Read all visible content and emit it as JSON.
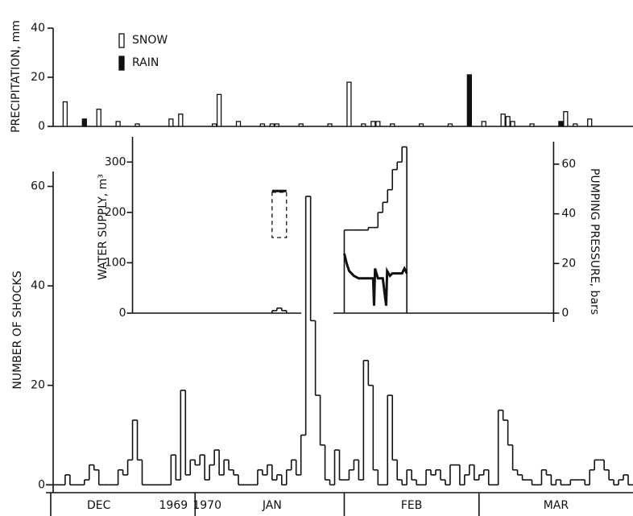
{
  "chart_data": [
    {
      "type": "bar",
      "y_label": "PRECIPITATION, mm",
      "xlim": [
        0,
        122
      ],
      "ylim": [
        0,
        40
      ],
      "yticks": [
        0,
        20,
        40
      ],
      "series": [
        {
          "name": "SNOW",
          "style": "hollow",
          "color": "#111111",
          "x": [
            4,
            11,
            15,
            19,
            26,
            28,
            35,
            36,
            40,
            45,
            47,
            48,
            53,
            59,
            63,
            66,
            68,
            69,
            72,
            78,
            84,
            91,
            95,
            96,
            97,
            101,
            108,
            110,
            113
          ],
          "values": [
            10,
            7,
            2,
            1,
            3,
            5,
            1,
            13,
            2,
            1,
            1,
            1,
            1,
            1,
            18,
            1,
            2,
            2,
            1,
            1,
            1,
            2,
            5,
            4,
            2,
            1,
            6,
            1,
            3
          ]
        },
        {
          "name": "RAIN",
          "style": "filled",
          "color": "#111111",
          "x": [
            8,
            88,
            107
          ],
          "values": [
            3,
            21,
            2
          ]
        }
      ]
    },
    {
      "type": "step",
      "y_label": "NUMBER OF SHOCKS",
      "xlim": [
        0,
        122
      ],
      "ylim": [
        -4,
        63
      ],
      "yticks": [
        0,
        20,
        40,
        60
      ],
      "color": "#111111",
      "x": [
        0,
        1,
        2,
        3,
        4,
        5,
        6,
        7,
        8,
        9,
        10,
        11,
        12,
        13,
        14,
        15,
        16,
        17,
        18,
        19,
        20,
        21,
        22,
        23,
        24,
        25,
        26,
        27,
        28,
        29,
        30,
        31,
        32,
        33,
        34,
        35,
        36,
        37,
        38,
        39,
        40,
        41,
        42,
        43,
        44,
        45,
        46,
        47,
        48,
        49,
        50,
        51,
        52,
        53,
        54,
        55,
        56,
        57,
        58,
        59,
        60,
        61,
        62,
        63,
        64,
        65,
        66,
        67,
        68,
        69,
        70,
        71,
        72,
        73,
        74,
        75,
        76,
        77,
        78,
        79,
        80,
        81,
        82,
        83,
        84,
        85,
        86,
        87,
        88,
        89,
        90,
        91,
        92,
        93,
        94,
        95,
        96,
        97,
        98,
        99,
        100,
        101,
        102,
        103,
        104,
        105,
        106,
        107,
        108,
        109,
        110,
        111,
        112,
        113,
        114,
        115,
        116,
        117,
        118,
        119,
        120,
        121
      ],
      "values": [
        0,
        0,
        0,
        0,
        2,
        0,
        0,
        0,
        1,
        4,
        3,
        0,
        0,
        0,
        0,
        3,
        2,
        5,
        13,
        5,
        0,
        0,
        0,
        0,
        0,
        0,
        6,
        1,
        19,
        2,
        5,
        4,
        6,
        1,
        4,
        7,
        2,
        5,
        3,
        2,
        0,
        0,
        0,
        0,
        3,
        2,
        4,
        1,
        2,
        0,
        3,
        5,
        2,
        10,
        58,
        33,
        18,
        8,
        1,
        0,
        7,
        1,
        1,
        3,
        5,
        1,
        25,
        20,
        3,
        0,
        0,
        18,
        5,
        1,
        0,
        3,
        1,
        0,
        0,
        3,
        2,
        3,
        1,
        0,
        4,
        4,
        0,
        2,
        4,
        1,
        2,
        3,
        0,
        0,
        15,
        13,
        8,
        3,
        2,
        1,
        1,
        0,
        0,
        3,
        2,
        0,
        1,
        0,
        0,
        1,
        1,
        1,
        0,
        3,
        5,
        5,
        3,
        1,
        0,
        1,
        2,
        0
      ],
      "xticks": [
        {
          "value": 11,
          "label": "DEC"
        },
        {
          "value": 26.5,
          "label": "1969"
        },
        {
          "value": 33.5,
          "label": "1970"
        },
        {
          "value": 47,
          "label": "JAN"
        },
        {
          "value": 76,
          "label": "FEB"
        },
        {
          "value": 106,
          "label": "MAR"
        }
      ],
      "month_boundaries": [
        1,
        31,
        62,
        90
      ]
    },
    {
      "type": "inset",
      "y_label": "WATER SUPPLY, m³",
      "y2_label": "PUMPING PRESSURE, bars",
      "xlim": [
        18,
        105.5
      ],
      "ylim": [
        0,
        350
      ],
      "yticks": [
        0,
        100,
        200,
        300
      ],
      "y2lim": [
        0,
        71
      ],
      "y2ticks": [
        0,
        20,
        40,
        60
      ],
      "series": [
        {
          "kind": "step",
          "color": "#111111",
          "x": [
            47,
            48,
            49,
            62,
            63,
            64,
            65,
            66,
            67,
            68,
            69,
            70,
            71,
            72,
            73,
            74
          ],
          "values": [
            5,
            10,
            5,
            165,
            165,
            165,
            165,
            165,
            170,
            170,
            200,
            220,
            245,
            285,
            300,
            330
          ]
        },
        {
          "kind": "line",
          "axis": "y2",
          "color": "#111111",
          "x": [
            62,
            62.5,
            63,
            64,
            65,
            66,
            67,
            68,
            68.2,
            68.4,
            69,
            70,
            70.7,
            70.9,
            71.5,
            72,
            73,
            74,
            74.5,
            75
          ],
          "values": [
            24,
            20,
            17,
            15,
            14,
            14,
            14,
            14,
            3,
            18,
            14,
            14,
            3,
            17,
            15,
            16,
            16,
            16,
            18,
            16
          ]
        }
      ],
      "estimate": {
        "x": [
          47,
          50
        ],
        "range": [
          150,
          240
        ],
        "top": 245
      }
    }
  ]
}
